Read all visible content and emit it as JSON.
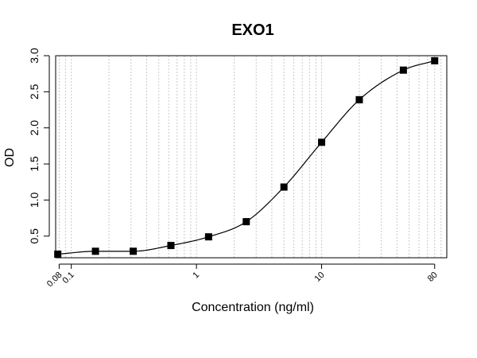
{
  "chart_data": {
    "type": "scatter",
    "title": "EXO1",
    "xlabel": "Concentration (ng/ml)",
    "ylabel": "OD",
    "x_scale": "log",
    "xlim": [
      0.075,
      100
    ],
    "ylim": [
      0.2,
      3.0
    ],
    "x_ticks": [
      0.08,
      0.1,
      1,
      10,
      80
    ],
    "x_tick_labels": [
      "0.08",
      "0.1",
      "1",
      "10",
      "80"
    ],
    "y_ticks": [
      0.5,
      1.0,
      1.5,
      2.0,
      2.5,
      3.0
    ],
    "y_tick_labels": [
      "0.5",
      "1.0",
      "1.5",
      "2.0",
      "2.5",
      "3.0"
    ],
    "grid": "vertical-dotted",
    "legend": "none",
    "fit_curve": "4PL",
    "colors": {
      "marker": "#000000",
      "line": "#000000",
      "grid": "#c8c8c8"
    },
    "points": [
      {
        "x": 0.078,
        "y": 0.25
      },
      {
        "x": 0.156,
        "y": 0.29
      },
      {
        "x": 0.3125,
        "y": 0.29
      },
      {
        "x": 0.625,
        "y": 0.37
      },
      {
        "x": 1.25,
        "y": 0.49
      },
      {
        "x": 2.5,
        "y": 0.7
      },
      {
        "x": 5,
        "y": 1.18
      },
      {
        "x": 10,
        "y": 1.8
      },
      {
        "x": 20,
        "y": 2.39
      },
      {
        "x": 45,
        "y": 2.8
      },
      {
        "x": 80,
        "y": 2.93
      }
    ]
  }
}
